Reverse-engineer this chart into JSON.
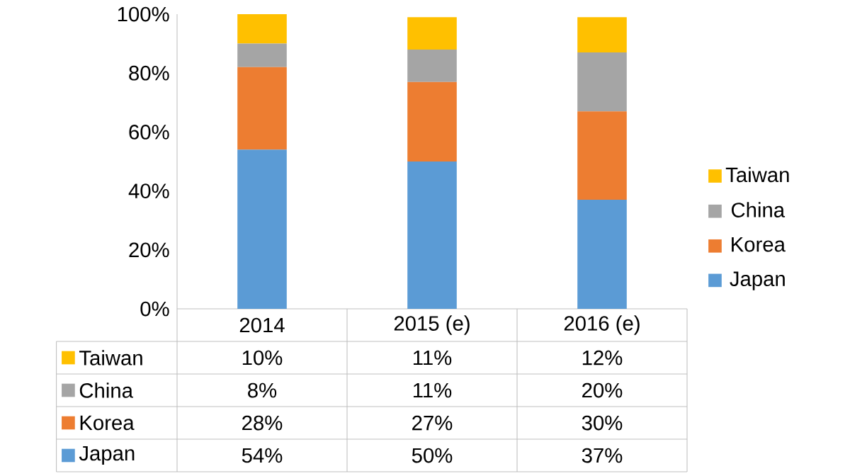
{
  "chart_data": {
    "type": "bar",
    "stacked": true,
    "categories": [
      "2014",
      "2015 (e)",
      "2016 (e)"
    ],
    "series": [
      {
        "name": "Japan",
        "color": "#5b9bd5",
        "values": [
          54,
          50,
          37
        ],
        "value_labels": [
          "54%",
          "50%",
          "37%"
        ]
      },
      {
        "name": "Korea",
        "color": "#ed7d31",
        "values": [
          28,
          27,
          30
        ],
        "value_labels": [
          "28%",
          "27%",
          "30%"
        ]
      },
      {
        "name": "China",
        "color": "#a5a5a5",
        "values": [
          8,
          11,
          20
        ],
        "value_labels": [
          "8%",
          "11%",
          "20%"
        ]
      },
      {
        "name": "Taiwan",
        "color": "#ffc000",
        "values": [
          10,
          11,
          12
        ],
        "value_labels": [
          "10%",
          "11%",
          "12%"
        ]
      }
    ],
    "ylim": [
      0,
      100
    ],
    "yticks": [
      {
        "value": 0,
        "label": "0%"
      },
      {
        "value": 20,
        "label": "20%"
      },
      {
        "value": 40,
        "label": "40%"
      },
      {
        "value": 60,
        "label": "60%"
      },
      {
        "value": 80,
        "label": "80%"
      },
      {
        "value": 100,
        "label": "100%"
      }
    ],
    "legend": "right"
  }
}
